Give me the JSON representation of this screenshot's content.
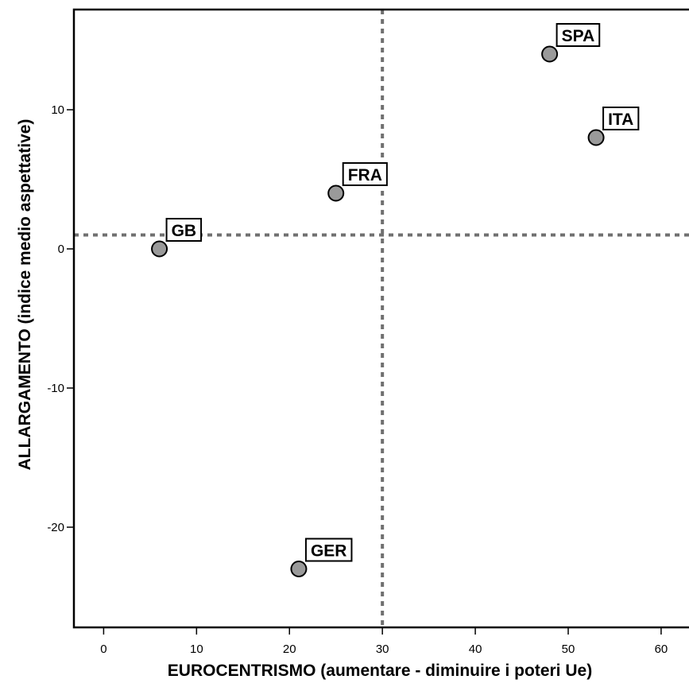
{
  "chart_data": {
    "type": "scatter",
    "title": "",
    "xlabel": "EUROCENTRISMO (aumentare - diminuire i poteri Ue)",
    "ylabel": "ALLARGAMENTO (indice medio aspettative)",
    "xlim": [
      -3.2,
      63
    ],
    "ylim": [
      -27.2,
      17.2
    ],
    "x_ticks": [
      0,
      10,
      20,
      30,
      40,
      50,
      60
    ],
    "y_ticks": [
      -20,
      -10,
      0,
      10
    ],
    "reference_lines": {
      "x": 30,
      "y": 1
    },
    "grid": false,
    "legend": "none",
    "colors": {
      "marker_fill": "#9a9a9a",
      "marker_edge": "#000000",
      "reference_line": "#707070"
    },
    "points": [
      {
        "label": "SPA",
        "x": 48,
        "y": 14
      },
      {
        "label": "ITA",
        "x": 53,
        "y": 8
      },
      {
        "label": "FRA",
        "x": 25,
        "y": 4
      },
      {
        "label": "GB",
        "x": 6,
        "y": 0
      },
      {
        "label": "GER",
        "x": 21,
        "y": -23
      }
    ]
  }
}
